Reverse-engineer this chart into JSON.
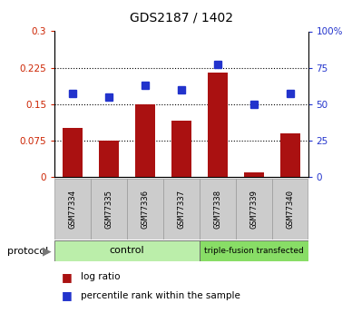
{
  "title": "GDS2187 / 1402",
  "samples": [
    "GSM77334",
    "GSM77335",
    "GSM77336",
    "GSM77337",
    "GSM77338",
    "GSM77339",
    "GSM77340"
  ],
  "log_ratio": [
    0.1,
    0.075,
    0.15,
    0.115,
    0.215,
    0.01,
    0.09
  ],
  "percentile_rank": [
    57,
    55,
    63,
    60,
    77,
    50,
    57
  ],
  "bar_color": "#aa1111",
  "marker_color": "#2233cc",
  "left_ylim": [
    0,
    0.3
  ],
  "right_ylim": [
    0,
    100
  ],
  "left_yticks": [
    0,
    0.075,
    0.15,
    0.225,
    0.3
  ],
  "left_ytick_labels": [
    "0",
    "0.075",
    "0.15",
    "0.225",
    "0.3"
  ],
  "right_yticks": [
    0,
    25,
    50,
    75,
    100
  ],
  "right_ytick_labels": [
    "0",
    "25",
    "50",
    "75",
    "100%"
  ],
  "gridlines_at": [
    0.075,
    0.15,
    0.225
  ],
  "control_count": 4,
  "group_labels": [
    "control",
    "triple-fusion transfected"
  ],
  "control_color": "#bbeeaa",
  "tf_color": "#88dd66",
  "protocol_label": "protocol",
  "legend_items": [
    "log ratio",
    "percentile rank within the sample"
  ],
  "bar_width": 0.55,
  "bg_color": "#ffffff",
  "plot_bg": "#ffffff",
  "tick_label_color_left": "#cc2200",
  "tick_label_color_right": "#2233cc",
  "sample_box_color": "#cccccc",
  "sample_box_edge": "#999999"
}
